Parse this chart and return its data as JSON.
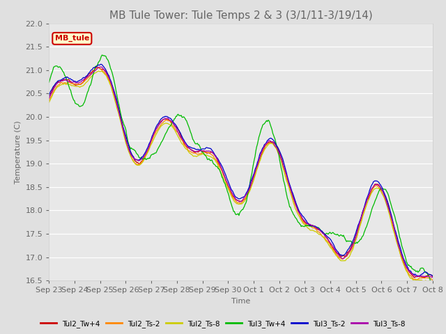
{
  "title": "MB Tule Tower: Tule Temps 2 & 3 (3/1/11-3/19/14)",
  "xlabel": "Time",
  "ylabel": "Temperature (C)",
  "ylim": [
    16.5,
    22.0
  ],
  "legend_label": "MB_tule",
  "series_labels": [
    "Tul2_Tw+4",
    "Tul2_Ts-2",
    "Tul2_Ts-8",
    "Tul3_Tw+4",
    "Tul3_Ts-2",
    "Tul3_Ts-8"
  ],
  "series_colors": [
    "#cc0000",
    "#ff8800",
    "#cccc00",
    "#00bb00",
    "#0000cc",
    "#aa00aa"
  ],
  "x_tick_labels": [
    "Sep 23",
    "Sep 24",
    "Sep 25",
    "Sep 26",
    "Sep 27",
    "Sep 28",
    "Sep 29",
    "Sep 30",
    "Oct 1",
    "Oct 2",
    "Oct 3",
    "Oct 4",
    "Oct 5",
    "Oct 6",
    "Oct 7",
    "Oct 8"
  ],
  "background_color": "#e0e0e0",
  "plot_bg_color": "#e8e8e8",
  "grid_color": "#ffffff",
  "title_fontsize": 11,
  "axis_fontsize": 8,
  "yticks": [
    16.5,
    17.0,
    17.5,
    18.0,
    18.5,
    19.0,
    19.5,
    20.0,
    20.5,
    21.0,
    21.5,
    22.0
  ]
}
